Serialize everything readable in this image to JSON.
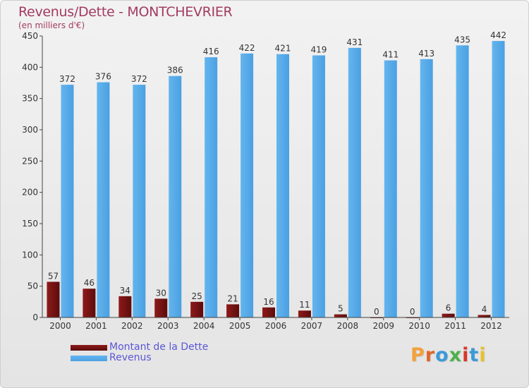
{
  "title": "Revenus/Dette - MONTCHEVRIER",
  "subtitle": "(en milliers d'€)",
  "logo": "Proxiti",
  "colors": {
    "title": "#a33b61",
    "debt": "#7a1212",
    "revenue": "#4aa0e2",
    "legend_text": "#5b57d6"
  },
  "chart_data": {
    "type": "bar",
    "categories": [
      "2000",
      "2001",
      "2002",
      "2003",
      "2004",
      "2005",
      "2006",
      "2007",
      "2008",
      "2009",
      "2010",
      "2011",
      "2012"
    ],
    "series": [
      {
        "name": "Montant de la Dette",
        "color": "#7a1212",
        "values": [
          57,
          46,
          34,
          30,
          25,
          21,
          16,
          11,
          5,
          0,
          0,
          6,
          4
        ]
      },
      {
        "name": "Revenus",
        "color": "#4aa0e2",
        "values": [
          372,
          376,
          372,
          386,
          416,
          422,
          421,
          419,
          431,
          411,
          413,
          435,
          442
        ]
      }
    ],
    "title": "Revenus/Dette - MONTCHEVRIER",
    "ylabel": "(en milliers d'€)",
    "xlabel": "",
    "ylim": [
      0,
      450
    ],
    "yticks": [
      0,
      50,
      100,
      150,
      200,
      250,
      300,
      350,
      400,
      450
    ],
    "grid": false,
    "legend_position": "bottom-left"
  }
}
